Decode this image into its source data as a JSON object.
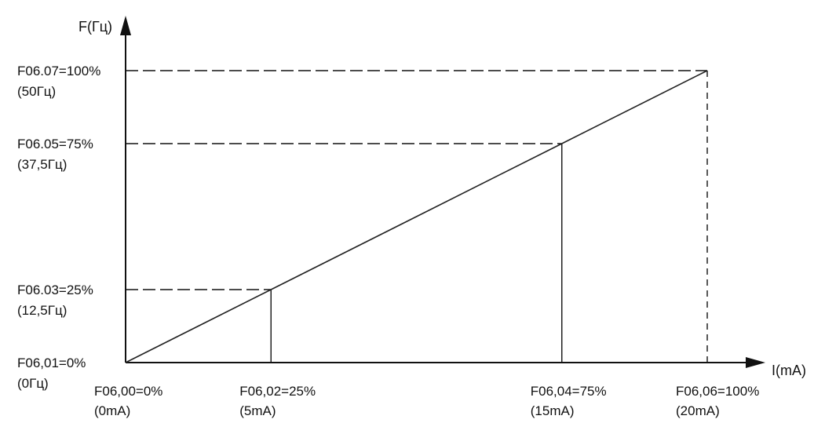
{
  "chart_data": {
    "type": "line",
    "ylabel": "F(Гц)",
    "xlabel": "I(mA)",
    "xlim": [
      0,
      20
    ],
    "ylim": [
      0,
      50
    ],
    "grid": false,
    "series": [
      {
        "x": [
          0,
          5,
          15,
          20
        ],
        "y": [
          0,
          12.5,
          37.5,
          50
        ]
      }
    ],
    "x_ticks": [
      {
        "value": 0,
        "label": "F06,00=0%",
        "sublabel": "(0mA)"
      },
      {
        "value": 5,
        "label": "F06,02=25%",
        "sublabel": "(5mA)"
      },
      {
        "value": 15,
        "label": "F06,04=75%",
        "sublabel": "(15mA)"
      },
      {
        "value": 20,
        "label": "F06,06=100%",
        "sublabel": "(20mA)"
      }
    ],
    "y_ticks": [
      {
        "value": 0,
        "label": "F06,01=0%",
        "sublabel": "(0Гц)"
      },
      {
        "value": 12.5,
        "label": "F06.03=25%",
        "sublabel": "(12,5Гц)"
      },
      {
        "value": 37.5,
        "label": "F06.05=75%",
        "sublabel": "(37,5Гц)"
      },
      {
        "value": 50,
        "label": "F06.07=100%",
        "sublabel": "(50Гц)"
      }
    ],
    "line_color": "#222222"
  }
}
